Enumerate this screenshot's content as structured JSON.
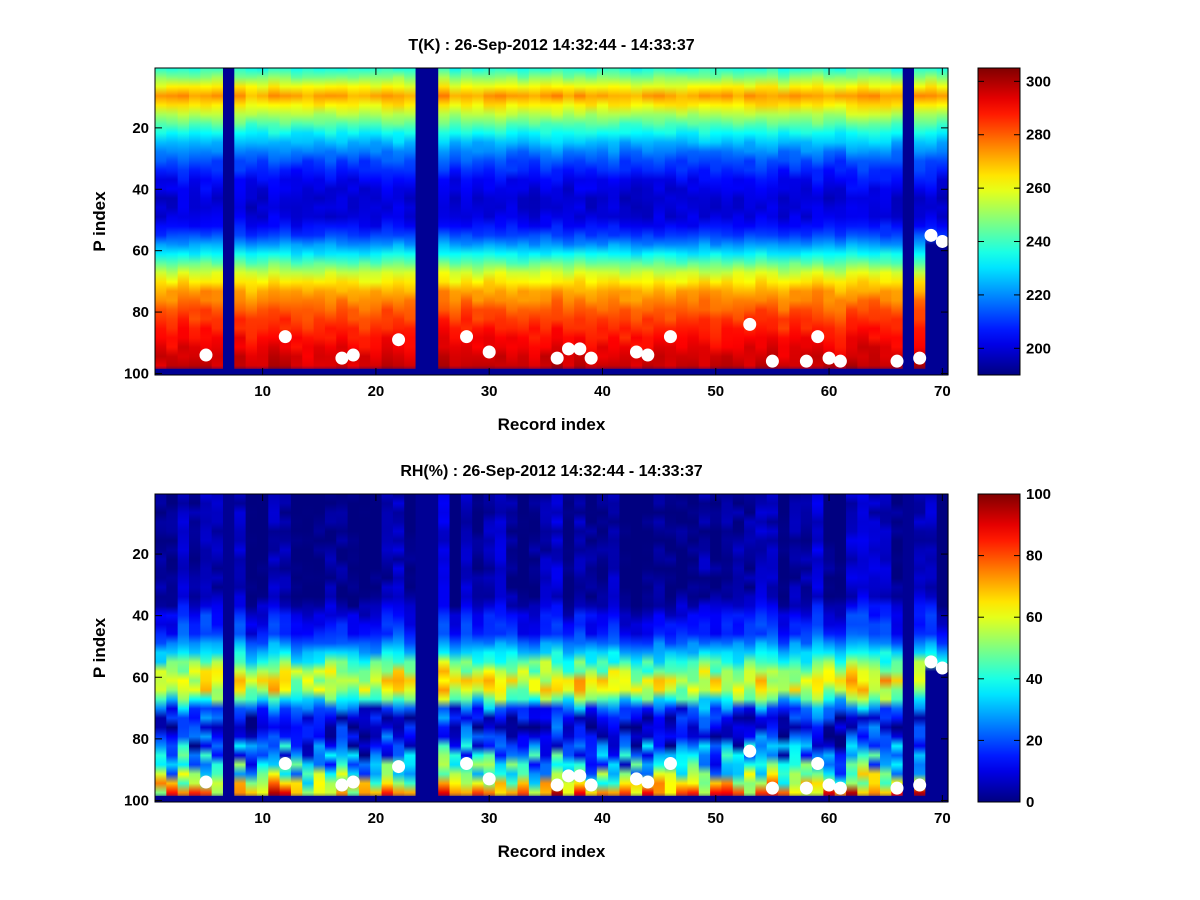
{
  "chart_data": [
    {
      "type": "heatmap",
      "title": "T(K) : 26-Sep-2012 14:32:44 - 14:33:37",
      "xlabel": "Record index",
      "ylabel": "P index",
      "xlim": [
        0.5,
        70.5
      ],
      "ylim": [
        0.5,
        100.5
      ],
      "y_reversed": true,
      "xticks": [
        10,
        20,
        30,
        40,
        50,
        60,
        70
      ],
      "yticks": [
        20,
        40,
        60,
        80,
        100
      ],
      "colormap": "jet",
      "colorbar": {
        "range": [
          190,
          305
        ],
        "ticks": [
          200,
          220,
          240,
          260,
          280,
          300
        ]
      },
      "profile_levels": [
        {
          "p": 1,
          "value": 236
        },
        {
          "p": 5,
          "value": 252
        },
        {
          "p": 9,
          "value": 271
        },
        {
          "p": 11,
          "value": 274
        },
        {
          "p": 13,
          "value": 264
        },
        {
          "p": 18,
          "value": 246
        },
        {
          "p": 24,
          "value": 228
        },
        {
          "p": 30,
          "value": 214
        },
        {
          "p": 37,
          "value": 204
        },
        {
          "p": 43,
          "value": 199
        },
        {
          "p": 50,
          "value": 201
        },
        {
          "p": 56,
          "value": 214
        },
        {
          "p": 62,
          "value": 236
        },
        {
          "p": 67,
          "value": 256
        },
        {
          "p": 73,
          "value": 272
        },
        {
          "p": 80,
          "value": 282
        },
        {
          "p": 88,
          "value": 290
        },
        {
          "p": 94,
          "value": 295
        },
        {
          "p": 98,
          "value": 297
        }
      ],
      "surface_markers": [
        {
          "record": 5,
          "p": 94
        },
        {
          "record": 12,
          "p": 88
        },
        {
          "record": 17,
          "p": 95
        },
        {
          "record": 18,
          "p": 94
        },
        {
          "record": 22,
          "p": 89
        },
        {
          "record": 28,
          "p": 88
        },
        {
          "record": 30,
          "p": 93
        },
        {
          "record": 36,
          "p": 95
        },
        {
          "record": 37,
          "p": 92
        },
        {
          "record": 38,
          "p": 92
        },
        {
          "record": 39,
          "p": 95
        },
        {
          "record": 43,
          "p": 93
        },
        {
          "record": 44,
          "p": 94
        },
        {
          "record": 46,
          "p": 88
        },
        {
          "record": 53,
          "p": 84
        },
        {
          "record": 55,
          "p": 96
        },
        {
          "record": 58,
          "p": 96
        },
        {
          "record": 59,
          "p": 88
        },
        {
          "record": 60,
          "p": 95
        },
        {
          "record": 61,
          "p": 96
        },
        {
          "record": 66,
          "p": 96
        },
        {
          "record": 68,
          "p": 95
        },
        {
          "record": 69,
          "p": 55
        },
        {
          "record": 70,
          "p": 57
        }
      ],
      "missing_records": [
        7,
        24,
        25,
        67
      ]
    },
    {
      "type": "heatmap",
      "title": "RH(%) : 26-Sep-2012 14:32:44 - 14:33:37",
      "xlabel": "Record index",
      "ylabel": "P index",
      "xlim": [
        0.5,
        70.5
      ],
      "ylim": [
        0.5,
        100.5
      ],
      "y_reversed": true,
      "xticks": [
        10,
        20,
        30,
        40,
        50,
        60,
        70
      ],
      "yticks": [
        20,
        40,
        60,
        80,
        100
      ],
      "colormap": "jet",
      "colorbar": {
        "range": [
          0,
          100
        ],
        "ticks": [
          0,
          20,
          40,
          60,
          80,
          100
        ]
      },
      "profile_levels": [
        {
          "p": 1,
          "value": 2
        },
        {
          "p": 34,
          "value": 3
        },
        {
          "p": 40,
          "value": 12
        },
        {
          "p": 46,
          "value": 16
        },
        {
          "p": 51,
          "value": 30
        },
        {
          "p": 56,
          "value": 48
        },
        {
          "p": 61,
          "value": 60
        },
        {
          "p": 64,
          "value": 58
        },
        {
          "p": 67,
          "value": 42
        },
        {
          "p": 70,
          "value": 20
        },
        {
          "p": 74,
          "value": 9
        },
        {
          "p": 80,
          "value": 14
        },
        {
          "p": 85,
          "value": 26
        },
        {
          "p": 90,
          "value": 38
        },
        {
          "p": 94,
          "value": 55
        },
        {
          "p": 97,
          "value": 72
        },
        {
          "p": 99,
          "value": 80
        }
      ],
      "surface_markers": [
        {
          "record": 5,
          "p": 94
        },
        {
          "record": 12,
          "p": 88
        },
        {
          "record": 17,
          "p": 95
        },
        {
          "record": 18,
          "p": 94
        },
        {
          "record": 22,
          "p": 89
        },
        {
          "record": 28,
          "p": 88
        },
        {
          "record": 30,
          "p": 93
        },
        {
          "record": 36,
          "p": 95
        },
        {
          "record": 37,
          "p": 92
        },
        {
          "record": 38,
          "p": 92
        },
        {
          "record": 39,
          "p": 95
        },
        {
          "record": 43,
          "p": 93
        },
        {
          "record": 44,
          "p": 94
        },
        {
          "record": 46,
          "p": 88
        },
        {
          "record": 53,
          "p": 84
        },
        {
          "record": 55,
          "p": 96
        },
        {
          "record": 58,
          "p": 96
        },
        {
          "record": 59,
          "p": 88
        },
        {
          "record": 60,
          "p": 95
        },
        {
          "record": 61,
          "p": 96
        },
        {
          "record": 66,
          "p": 96
        },
        {
          "record": 68,
          "p": 95
        },
        {
          "record": 69,
          "p": 55
        },
        {
          "record": 70,
          "p": 57
        }
      ],
      "missing_records": [
        7,
        24,
        25,
        67
      ]
    }
  ]
}
